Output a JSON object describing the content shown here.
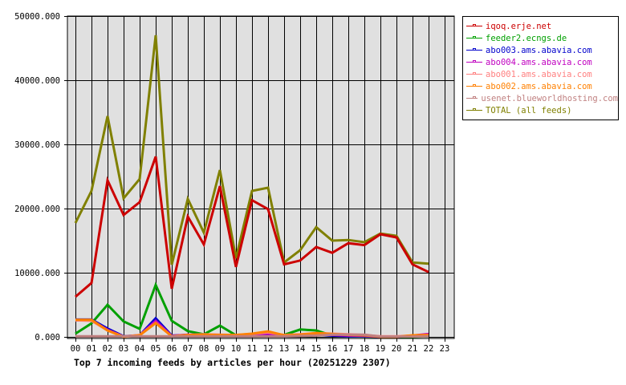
{
  "chart_data": {
    "type": "line",
    "title": "Top 7 incoming feeds by articles per hour (20251229 2307)",
    "xlabel": "",
    "ylabel": "",
    "ylim": [
      0,
      50000
    ],
    "yticks": [
      "0.000",
      "10000.000",
      "20000.000",
      "30000.000",
      "40000.000",
      "50000.000"
    ],
    "x": [
      "00",
      "01",
      "02",
      "03",
      "04",
      "05",
      "06",
      "07",
      "08",
      "09",
      "10",
      "11",
      "12",
      "13",
      "14",
      "15",
      "16",
      "17",
      "18",
      "19",
      "20",
      "21",
      "22",
      "23"
    ],
    "grid": true,
    "legend_position": "right",
    "series": [
      {
        "name": "iqoq.erje.net",
        "color": "#cc0000",
        "values": [
          6250,
          8400,
          24400,
          19000,
          21000,
          28100,
          7500,
          18750,
          14400,
          23500,
          10900,
          21300,
          19900,
          11300,
          11900,
          14000,
          13100,
          14600,
          14300,
          16000,
          15500,
          11300,
          10100,
          null
        ]
      },
      {
        "name": "feeder2.ecngs.de",
        "color": "#00a000",
        "values": [
          500,
          2100,
          5000,
          2400,
          1250,
          8100,
          2500,
          900,
          400,
          1750,
          250,
          400,
          500,
          300,
          1150,
          1000,
          200,
          100,
          50,
          0,
          0,
          0,
          100,
          null
        ]
      },
      {
        "name": "abo003.ams.abavia.com",
        "color": "#0000cc",
        "values": [
          2700,
          2700,
          1300,
          100,
          250,
          2900,
          200,
          300,
          350,
          300,
          300,
          350,
          400,
          100,
          200,
          300,
          200,
          100,
          100,
          0,
          0,
          200,
          200,
          null
        ]
      },
      {
        "name": "abo004.ams.abavia.com",
        "color": "#c000c0",
        "values": [
          2600,
          2600,
          1100,
          50,
          250,
          2500,
          150,
          350,
          350,
          250,
          300,
          350,
          500,
          150,
          250,
          400,
          300,
          200,
          150,
          0,
          0,
          200,
          450,
          null
        ]
      },
      {
        "name": "abo001.ams.abavia.com",
        "color": "#ff8080",
        "values": [
          2600,
          2500,
          1000,
          50,
          300,
          2200,
          100,
          300,
          400,
          350,
          300,
          450,
          700,
          300,
          400,
          600,
          500,
          400,
          300,
          100,
          100,
          200,
          300,
          null
        ]
      },
      {
        "name": "abo002.ams.abavia.com",
        "color": "#ff8000",
        "values": [
          2650,
          2650,
          1000,
          0,
          250,
          2150,
          100,
          300,
          350,
          300,
          300,
          500,
          850,
          250,
          350,
          600,
          450,
          300,
          250,
          0,
          0,
          250,
          300,
          null
        ]
      },
      {
        "name": "usenet.blueworldhosting.com",
        "color": "#c08080",
        "values": [
          100,
          100,
          100,
          100,
          100,
          100,
          100,
          100,
          100,
          100,
          100,
          100,
          100,
          100,
          150,
          200,
          350,
          350,
          350,
          50,
          50,
          50,
          100,
          null
        ]
      },
      {
        "name": "TOTAL (all feeds)",
        "color": "#808000",
        "values": [
          17750,
          22750,
          34400,
          21600,
          24600,
          47000,
          11250,
          21500,
          16250,
          26000,
          12250,
          22750,
          23250,
          11600,
          13500,
          17100,
          15000,
          15100,
          14750,
          16100,
          15750,
          11600,
          11400,
          null
        ]
      }
    ]
  },
  "legend": {
    "items": [
      {
        "label": "iqoq.erje.net",
        "color": "#cc0000"
      },
      {
        "label": "feeder2.ecngs.de",
        "color": "#00a000"
      },
      {
        "label": "abo003.ams.abavia.com",
        "color": "#0000cc"
      },
      {
        "label": "abo004.ams.abavia.com",
        "color": "#c000c0"
      },
      {
        "label": "abo001.ams.abavia.com",
        "color": "#ff8080"
      },
      {
        "label": "abo002.ams.abavia.com",
        "color": "#ff8000"
      },
      {
        "label": "usenet.blueworldhosting.com",
        "color": "#c08080"
      },
      {
        "label": "TOTAL (all feeds)",
        "color": "#808000"
      }
    ]
  },
  "colors": {
    "plot_background": "#e0e0e0",
    "grid": "#000000"
  }
}
